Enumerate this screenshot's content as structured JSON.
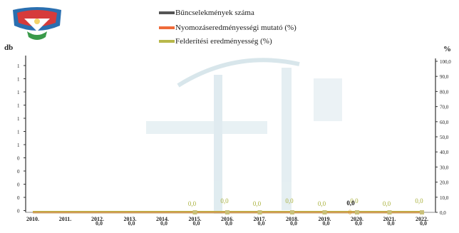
{
  "chart_data": {
    "type": "line",
    "categories": [
      "2010.",
      "2011.",
      "2012.",
      "2013.",
      "2014.",
      "2015.",
      "2016.",
      "2017.",
      "2018.",
      "2019.",
      "2020.",
      "2021.",
      "2022."
    ],
    "legend": {
      "position": "top-center",
      "entries": [
        {
          "label": "Bűncselekmények száma",
          "color": "#555555"
        },
        {
          "label": "Nyomozáseredményességi mutató (%)",
          "color": "#ef6b3a"
        },
        {
          "label": "Felderítési eredményesség (%)",
          "color": "#b8b84a"
        }
      ]
    },
    "left_axis": {
      "unit": "db",
      "tick_labels": [
        "1",
        "1",
        "1",
        "1",
        "1",
        "1",
        "1",
        "0",
        "0",
        "0",
        "0",
        "0"
      ]
    },
    "right_axis": {
      "unit": "%",
      "range": [
        0,
        100
      ],
      "tick_labels": [
        "100,0",
        "90,0",
        "80,0",
        "70,0",
        "60,0",
        "50,0",
        "40,0",
        "30,0",
        "20,0",
        "10,0",
        "0,0"
      ]
    },
    "series": [
      {
        "name": "Bűncselekmények száma",
        "values": [
          0,
          0,
          0,
          0,
          0,
          0,
          0,
          0,
          0,
          0,
          0,
          0,
          0
        ],
        "labels": [
          "",
          "",
          "0,0",
          "0,0",
          "0,0",
          "0,0",
          "0,0",
          "0,0",
          "0,0",
          "0,0",
          "0,0",
          "0,0",
          "0,0"
        ]
      },
      {
        "name": "Nyomozáseredményességi mutató (%)",
        "values": [
          0,
          0,
          0,
          0,
          0,
          0,
          0,
          0,
          0,
          0,
          0,
          0,
          0
        ]
      },
      {
        "name": "Felderítési eredményesség (%)",
        "values": [
          0,
          0,
          0,
          0,
          0,
          0,
          0,
          0,
          0,
          0,
          0,
          0,
          0
        ],
        "labels": [
          "",
          "",
          "",
          "",
          "",
          "0,0",
          "0,0",
          "0,0",
          "0,0",
          "0,0",
          "0,0",
          "0,0",
          "0,0"
        ]
      }
    ],
    "extra_label": {
      "index": 10,
      "text": "0,0"
    },
    "colors": {
      "main_line": "#c9a86a",
      "marker": "#c9c07a",
      "axis": "#333333",
      "watermark": "#b9d3dc"
    },
    "grid": false
  },
  "logo": {
    "name": "police-emblem-icon",
    "colors": [
      "#d63b3b",
      "#2a6fb0",
      "#3a9a4a"
    ]
  }
}
